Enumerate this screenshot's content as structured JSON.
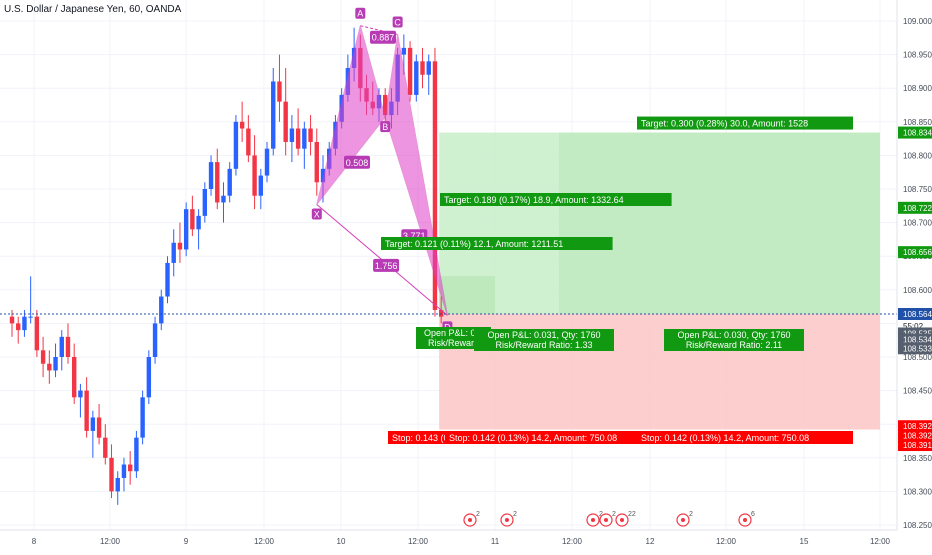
{
  "header": {
    "symbol_title": "U.S. Dollar / Japanese Yen, 60, OANDA"
  },
  "colors": {
    "up": "#2962ff",
    "down": "#f23645",
    "pattern_fill": "#e040c8",
    "pattern_stroke": "#d63cb8",
    "pattern_label": "#b73bb4",
    "profit_fill": "#c8efc8",
    "loss_fill": "#fcc6c6",
    "green_tag": "#119911",
    "red_tag": "#ff0000",
    "gray_tag": "#555f6e",
    "current_price_line": "#2150a8",
    "axis_text": "#444b57"
  },
  "chart_data": {
    "type": "candlestick",
    "x_axis_labels": [
      "8",
      "12:00",
      "9",
      "12:00",
      "10",
      "12:00",
      "11",
      "12:00",
      "12",
      "12:00",
      "15",
      "12:00"
    ],
    "y_axis_ticks": [
      "109.000",
      "108.950",
      "108.900",
      "108.850",
      "108.800",
      "108.750",
      "108.700",
      "108.650",
      "108.600",
      "108.550",
      "108.500",
      "108.450",
      "108.400",
      "108.350",
      "108.300",
      "108.250"
    ],
    "ylim": [
      108.24,
      109.04
    ],
    "candles": [
      {
        "o": 108.56,
        "h": 108.57,
        "l": 108.53,
        "c": 108.55
      },
      {
        "o": 108.55,
        "h": 108.56,
        "l": 108.52,
        "c": 108.54
      },
      {
        "o": 108.54,
        "h": 108.57,
        "l": 108.53,
        "c": 108.56
      },
      {
        "o": 108.56,
        "h": 108.62,
        "l": 108.55,
        "c": 108.56
      },
      {
        "o": 108.56,
        "h": 108.57,
        "l": 108.5,
        "c": 108.51
      },
      {
        "o": 108.51,
        "h": 108.53,
        "l": 108.47,
        "c": 108.49
      },
      {
        "o": 108.49,
        "h": 108.51,
        "l": 108.46,
        "c": 108.48
      },
      {
        "o": 108.48,
        "h": 108.52,
        "l": 108.47,
        "c": 108.5
      },
      {
        "o": 108.5,
        "h": 108.54,
        "l": 108.48,
        "c": 108.53
      },
      {
        "o": 108.53,
        "h": 108.55,
        "l": 108.49,
        "c": 108.5
      },
      {
        "o": 108.5,
        "h": 108.52,
        "l": 108.43,
        "c": 108.44
      },
      {
        "o": 108.44,
        "h": 108.46,
        "l": 108.41,
        "c": 108.45
      },
      {
        "o": 108.45,
        "h": 108.47,
        "l": 108.38,
        "c": 108.39
      },
      {
        "o": 108.39,
        "h": 108.42,
        "l": 108.35,
        "c": 108.41
      },
      {
        "o": 108.41,
        "h": 108.43,
        "l": 108.37,
        "c": 108.38
      },
      {
        "o": 108.38,
        "h": 108.4,
        "l": 108.34,
        "c": 108.35
      },
      {
        "o": 108.35,
        "h": 108.37,
        "l": 108.29,
        "c": 108.3
      },
      {
        "o": 108.3,
        "h": 108.33,
        "l": 108.28,
        "c": 108.32
      },
      {
        "o": 108.32,
        "h": 108.35,
        "l": 108.3,
        "c": 108.34
      },
      {
        "o": 108.34,
        "h": 108.36,
        "l": 108.31,
        "c": 108.33
      },
      {
        "o": 108.33,
        "h": 108.39,
        "l": 108.32,
        "c": 108.38
      },
      {
        "o": 108.38,
        "h": 108.45,
        "l": 108.37,
        "c": 108.44
      },
      {
        "o": 108.44,
        "h": 108.51,
        "l": 108.43,
        "c": 108.5
      },
      {
        "o": 108.5,
        "h": 108.56,
        "l": 108.49,
        "c": 108.55
      },
      {
        "o": 108.55,
        "h": 108.6,
        "l": 108.54,
        "c": 108.59
      },
      {
        "o": 108.59,
        "h": 108.65,
        "l": 108.58,
        "c": 108.64
      },
      {
        "o": 108.64,
        "h": 108.69,
        "l": 108.62,
        "c": 108.67
      },
      {
        "o": 108.67,
        "h": 108.7,
        "l": 108.64,
        "c": 108.66
      },
      {
        "o": 108.66,
        "h": 108.73,
        "l": 108.65,
        "c": 108.72
      },
      {
        "o": 108.72,
        "h": 108.74,
        "l": 108.68,
        "c": 108.69
      },
      {
        "o": 108.69,
        "h": 108.72,
        "l": 108.66,
        "c": 108.71
      },
      {
        "o": 108.71,
        "h": 108.76,
        "l": 108.7,
        "c": 108.75
      },
      {
        "o": 108.75,
        "h": 108.8,
        "l": 108.74,
        "c": 108.79
      },
      {
        "o": 108.79,
        "h": 108.81,
        "l": 108.72,
        "c": 108.73
      },
      {
        "o": 108.73,
        "h": 108.76,
        "l": 108.7,
        "c": 108.74
      },
      {
        "o": 108.74,
        "h": 108.79,
        "l": 108.73,
        "c": 108.78
      },
      {
        "o": 108.78,
        "h": 108.86,
        "l": 108.77,
        "c": 108.85
      },
      {
        "o": 108.85,
        "h": 108.88,
        "l": 108.82,
        "c": 108.84
      },
      {
        "o": 108.84,
        "h": 108.86,
        "l": 108.79,
        "c": 108.8
      },
      {
        "o": 108.8,
        "h": 108.83,
        "l": 108.72,
        "c": 108.74
      },
      {
        "o": 108.74,
        "h": 108.78,
        "l": 108.72,
        "c": 108.77
      },
      {
        "o": 108.77,
        "h": 108.82,
        "l": 108.76,
        "c": 108.81
      },
      {
        "o": 108.81,
        "h": 108.93,
        "l": 108.8,
        "c": 108.91
      },
      {
        "o": 108.91,
        "h": 108.95,
        "l": 108.85,
        "c": 108.88
      },
      {
        "o": 108.88,
        "h": 108.93,
        "l": 108.8,
        "c": 108.82
      },
      {
        "o": 108.82,
        "h": 108.86,
        "l": 108.79,
        "c": 108.84
      },
      {
        "o": 108.84,
        "h": 108.87,
        "l": 108.8,
        "c": 108.81
      },
      {
        "o": 108.81,
        "h": 108.85,
        "l": 108.78,
        "c": 108.84
      },
      {
        "o": 108.84,
        "h": 108.86,
        "l": 108.8,
        "c": 108.82
      },
      {
        "o": 108.82,
        "h": 108.84,
        "l": 108.74,
        "c": 108.76
      },
      {
        "o": 108.76,
        "h": 108.8,
        "l": 108.73,
        "c": 108.78
      },
      {
        "o": 108.78,
        "h": 108.82,
        "l": 108.77,
        "c": 108.81
      },
      {
        "o": 108.81,
        "h": 108.86,
        "l": 108.8,
        "c": 108.85
      },
      {
        "o": 108.85,
        "h": 108.9,
        "l": 108.84,
        "c": 108.89
      },
      {
        "o": 108.89,
        "h": 108.95,
        "l": 108.88,
        "c": 108.93
      },
      {
        "o": 108.93,
        "h": 108.99,
        "l": 108.91,
        "c": 108.96
      },
      {
        "o": 108.96,
        "h": 108.98,
        "l": 108.88,
        "c": 108.9
      },
      {
        "o": 108.9,
        "h": 108.92,
        "l": 108.86,
        "c": 108.88
      },
      {
        "o": 108.88,
        "h": 108.91,
        "l": 108.86,
        "c": 108.87
      },
      {
        "o": 108.87,
        "h": 108.9,
        "l": 108.85,
        "c": 108.89
      },
      {
        "o": 108.89,
        "h": 108.9,
        "l": 108.85,
        "c": 108.86
      },
      {
        "o": 108.86,
        "h": 108.9,
        "l": 108.84,
        "c": 108.88
      },
      {
        "o": 108.88,
        "h": 108.96,
        "l": 108.86,
        "c": 108.95
      },
      {
        "o": 108.95,
        "h": 108.98,
        "l": 108.92,
        "c": 108.96
      },
      {
        "o": 108.96,
        "h": 108.97,
        "l": 108.88,
        "c": 108.89
      },
      {
        "o": 108.89,
        "h": 108.95,
        "l": 108.88,
        "c": 108.94
      },
      {
        "o": 108.94,
        "h": 108.96,
        "l": 108.9,
        "c": 108.92
      },
      {
        "o": 108.92,
        "h": 108.95,
        "l": 108.89,
        "c": 108.94
      },
      {
        "o": 108.94,
        "h": 108.96,
        "l": 108.56,
        "c": 108.57
      },
      {
        "o": 108.57,
        "h": 108.59,
        "l": 108.55,
        "c": 108.56
      }
    ],
    "harmonic_pattern": {
      "points": [
        {
          "label": "X",
          "price": 108.727
        },
        {
          "label": "A",
          "price": 108.993
        },
        {
          "label": "B",
          "price": 108.857
        },
        {
          "label": "C",
          "price": 108.98
        },
        {
          "label": "D",
          "price": 108.562
        }
      ],
      "ratio_labels": [
        "0.887",
        "0.508",
        "3.771",
        "1.756"
      ]
    },
    "positions": {
      "entry": 108.564,
      "profit_top": 108.834,
      "loss_bottom": 108.392
    },
    "annotations": {
      "targets": [
        "Target: 0.300 (0.28%) 30.0, Amount: 1528",
        "Target: 0.189 (0.17%) 18.9, Amount: 1332.64",
        "Target: 0.121 (0.11%) 12.1, Amount: 1211.51"
      ],
      "open_pnl": [
        {
          "line1": "Open P&L: 0.0",
          "line2": "Risk/Reward"
        },
        {
          "line1": "Open P&L: 0.031, Qty: 1760",
          "line2": "Risk/Reward Ratio: 1.33"
        },
        {
          "line1": "Open P&L: 0.030, Qty: 1760",
          "line2": "Risk/Reward Ratio: 2.11"
        }
      ],
      "stops": [
        "Stop: 0.143 (0",
        "Stop: 0.142 (0.13%) 14.2, Amount: 750.08",
        "Stop: 0.142 (0.13%) 14.2, Amount: 750.08"
      ]
    },
    "price_tags": [
      {
        "text": "108.834",
        "price": 108.834,
        "kind": "green"
      },
      {
        "text": "108.722",
        "price": 108.722,
        "kind": "green"
      },
      {
        "text": "108.656",
        "price": 108.656,
        "kind": "green"
      },
      {
        "text": "108.564",
        "price": 108.564,
        "kind": "blue"
      },
      {
        "text": "55:02",
        "price": 108.546,
        "kind": "plain"
      },
      {
        "text": "108.535",
        "price": 108.535,
        "kind": "gray"
      },
      {
        "text": "108.534",
        "price": 108.526,
        "kind": "gray"
      },
      {
        "text": "108.533",
        "price": 108.513,
        "kind": "gray"
      },
      {
        "text": "108.392",
        "price": 108.397,
        "kind": "red"
      },
      {
        "text": "108.392",
        "price": 108.383,
        "kind": "red"
      },
      {
        "text": "108.391",
        "price": 108.369,
        "kind": "red"
      }
    ],
    "event_markers": [
      "2",
      "2",
      "2",
      "2",
      "22",
      "2",
      "6"
    ]
  }
}
